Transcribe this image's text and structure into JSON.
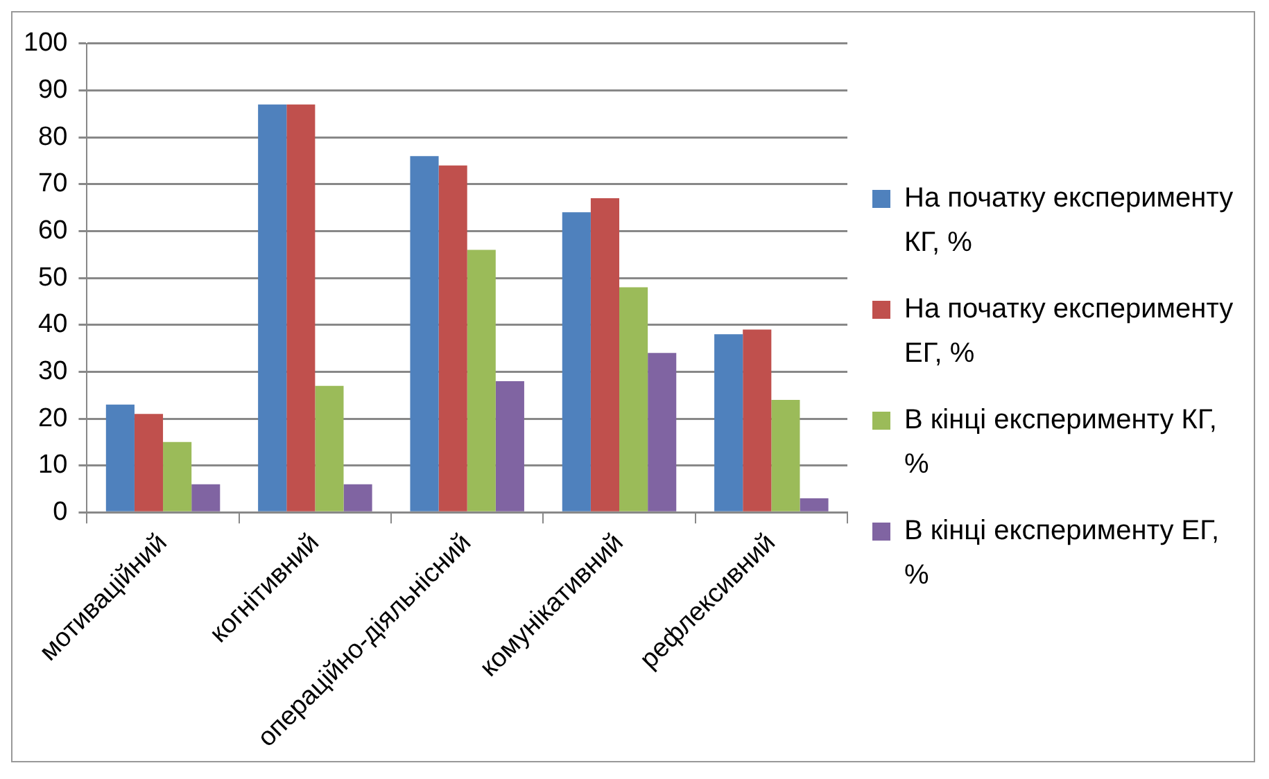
{
  "chart_data": {
    "type": "bar",
    "categories": [
      "мотиваційний",
      "когнітивний",
      "операційно-діяльнісний",
      "комунікативний",
      "рефлексивний"
    ],
    "series": [
      {
        "name": "На початку експерименту КГ, %",
        "color": "#4f81bd",
        "values": [
          23,
          87,
          76,
          64,
          38
        ]
      },
      {
        "name": "На початку експерименту ЕГ, %",
        "color": "#c0504d",
        "values": [
          21,
          87,
          74,
          67,
          39
        ]
      },
      {
        "name": "В кінці експерименту КГ, %",
        "color": "#9bbb59",
        "values": [
          15,
          27,
          56,
          48,
          24
        ]
      },
      {
        "name": "В кінці експерименту ЕГ, %",
        "color": "#8064a2",
        "values": [
          6,
          6,
          28,
          34,
          3
        ]
      }
    ],
    "ylim": [
      0,
      100
    ],
    "yticks": [
      0,
      10,
      20,
      30,
      40,
      50,
      60,
      70,
      80,
      90,
      100
    ],
    "grid": "y",
    "legend": "right"
  }
}
